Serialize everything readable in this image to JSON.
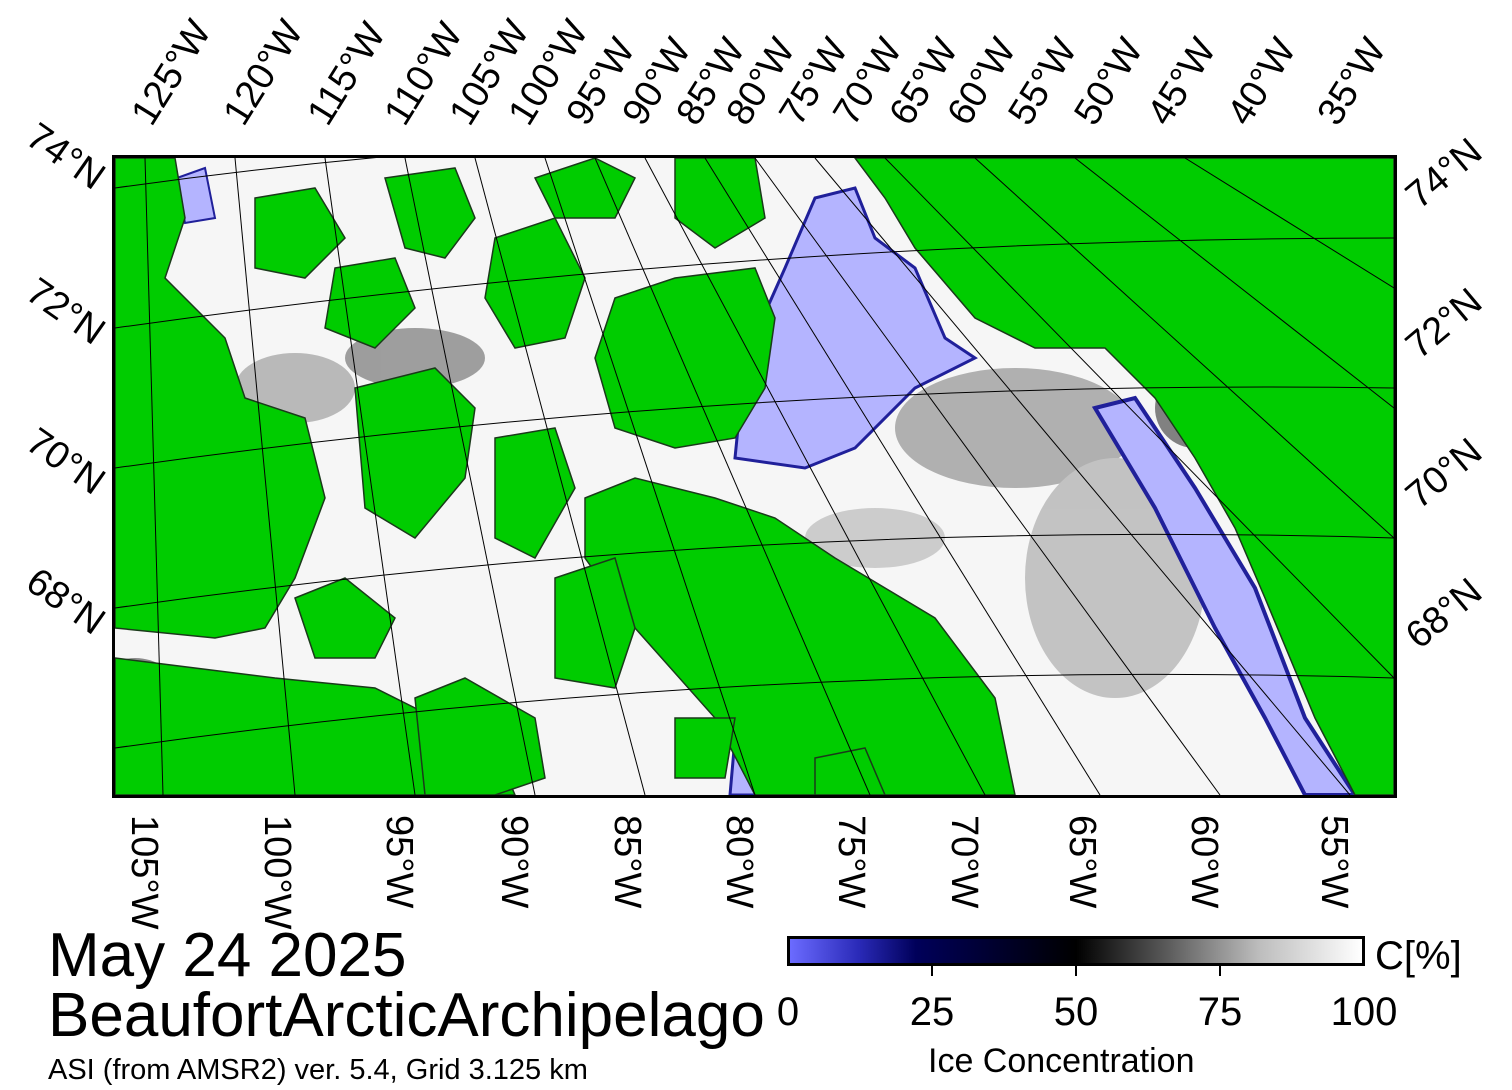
{
  "header": {
    "date": "May 24 2025",
    "region": "BeaufortArcticArchipelago",
    "source": "ASI (from AMSR2) ver. 5.4,  Grid 3.125 km"
  },
  "map": {
    "colors": {
      "land": "#00cc00",
      "open_water": "#b4b4ff",
      "ice_high": "#ffffff",
      "ice_mid": "#404040",
      "ice_low": "#00005a",
      "frame": "#000000"
    },
    "top_longitudes": [
      "125°W",
      "120°W",
      "115°W",
      "110°W",
      "105°W",
      "100°W",
      "95°W",
      "90°W",
      "85°W",
      "80°W",
      "75°W",
      "70°W",
      "65°W",
      "60°W",
      "55°W",
      "50°W",
      "45°W",
      "40°W",
      "35°W"
    ],
    "bottom_longitudes": [
      "105°W",
      "100°W",
      "95°W",
      "90°W",
      "85°W",
      "80°W",
      "75°W",
      "70°W",
      "65°W",
      "60°W",
      "55°W"
    ],
    "left_latitudes": [
      "74°N",
      "72°N",
      "70°N",
      "68°N"
    ],
    "right_latitudes": [
      "74°N",
      "72°N",
      "70°N",
      "68°N"
    ]
  },
  "colorbar": {
    "unit": "C[%]",
    "label": "Ice Concentration",
    "ticks": [
      "0",
      "25",
      "50",
      "75",
      "100"
    ]
  }
}
